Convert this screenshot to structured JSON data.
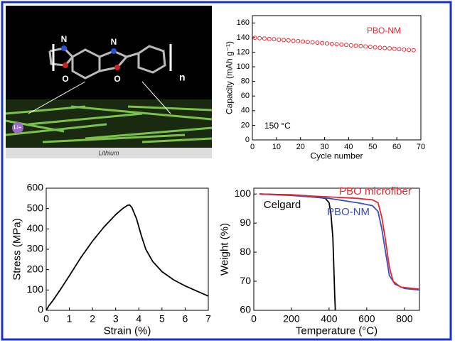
{
  "illustration": {
    "labels": [
      "N",
      "N",
      "O",
      "O",
      "n",
      "Li+",
      "Lithium"
    ]
  },
  "chart_data": [
    {
      "type": "scatter",
      "xlabel": "Cycle number",
      "ylabel": "Capacity (mAh g⁻¹)",
      "x": [
        1,
        3,
        5,
        7,
        9,
        11,
        13,
        15,
        17,
        19,
        21,
        23,
        25,
        27,
        29,
        31,
        33,
        35,
        37,
        39,
        41,
        43,
        45,
        47,
        49,
        51,
        53,
        55,
        57,
        59,
        61,
        63,
        65,
        67
      ],
      "series": [
        {
          "name": "PBO-NM",
          "color": "#e8242c",
          "values": [
            139.7,
            139.2,
            138.7,
            138.2,
            137.7,
            137.1,
            136.6,
            136.1,
            135.6,
            135.1,
            134.5,
            134.0,
            133.5,
            133.0,
            132.5,
            131.9,
            131.4,
            130.9,
            130.4,
            129.9,
            129.3,
            128.8,
            128.3,
            127.8,
            127.3,
            126.7,
            126.2,
            125.7,
            125.2,
            124.7,
            124.1,
            123.6,
            123.1,
            122.6
          ]
        }
      ],
      "annotations": [
        "150 °C"
      ],
      "xlim": [
        0,
        70
      ],
      "xticks": [
        0,
        10,
        20,
        30,
        40,
        50,
        60,
        70
      ],
      "ylim": [
        0,
        170
      ],
      "yticks": [
        0,
        20,
        40,
        60,
        80,
        100,
        120,
        140,
        160
      ]
    },
    {
      "type": "line",
      "xlabel": "Strain (%)",
      "ylabel": "Stress (MPa)",
      "x": [
        0,
        0.1,
        0.3,
        0.6,
        1,
        1.5,
        2,
        2.5,
        3,
        3.3,
        3.5,
        3.6,
        3.7,
        3.9,
        4.1,
        4.3,
        4.6,
        5,
        5.5,
        6,
        6.5,
        7
      ],
      "series": [
        {
          "color": "#000000",
          "values": [
            0,
            20,
            50,
            100,
            170,
            260,
            340,
            410,
            470,
            500,
            515,
            518,
            505,
            450,
            370,
            300,
            240,
            190,
            150,
            120,
            95,
            70
          ]
        }
      ],
      "xlim": [
        0,
        7
      ],
      "xticks": [
        0,
        1,
        2,
        3,
        4,
        5,
        6,
        7
      ],
      "ylim": [
        0,
        600
      ],
      "yticks": [
        0,
        100,
        200,
        300,
        400,
        500,
        600
      ]
    },
    {
      "type": "line",
      "xlabel": "Temperature (°C)",
      "ylabel": "Weight (%)",
      "series": [
        {
          "name": "Celgard",
          "color": "#000000",
          "x": [
            30,
            200,
            300,
            380,
            400,
            410,
            420,
            425,
            430,
            433
          ],
          "values": [
            100,
            99.7,
            99.3,
            98.5,
            97,
            93,
            85,
            75,
            65,
            60
          ]
        },
        {
          "name": "PBO-NM",
          "color": "#3a4fc0",
          "x": [
            30,
            200,
            400,
            550,
            630,
            660,
            680,
            700,
            720,
            750,
            800,
            880
          ],
          "values": [
            100,
            99.5,
            98.5,
            97,
            96,
            94,
            88,
            80,
            72,
            69,
            67.5,
            67
          ]
        },
        {
          "name": "PBO microfiber",
          "color": "#e8242c",
          "x": [
            30,
            200,
            400,
            550,
            630,
            660,
            680,
            700,
            720,
            740,
            780,
            880
          ],
          "values": [
            100,
            99.6,
            99,
            98.5,
            98,
            97,
            92,
            84,
            75,
            70,
            68,
            67.3
          ]
        }
      ],
      "xlim": [
        0,
        880
      ],
      "xticks": [
        0,
        200,
        400,
        600,
        800
      ],
      "ylim": [
        60,
        102
      ],
      "yticks": [
        60,
        70,
        80,
        90,
        100
      ]
    }
  ]
}
